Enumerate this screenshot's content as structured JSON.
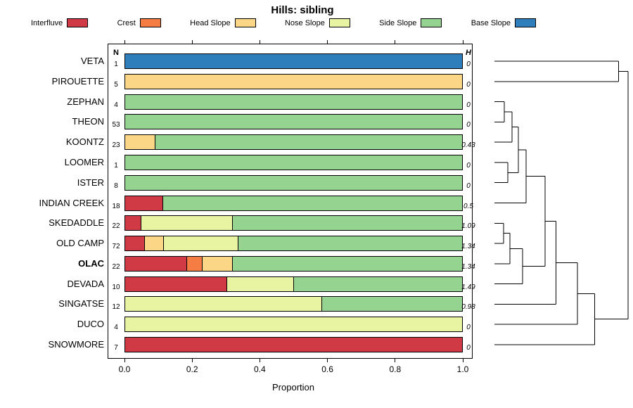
{
  "title": "Hills: sibling",
  "axis": {
    "xlabel": "Proportion",
    "ticks": [
      "0.0",
      "0.2",
      "0.4",
      "0.6",
      "0.8",
      "1.0"
    ],
    "tick_values": [
      0,
      0.2,
      0.4,
      0.6,
      0.8,
      1.0
    ],
    "xlim": [
      0,
      1
    ]
  },
  "columns": {
    "n_header": "N",
    "h_header": "H"
  },
  "chart_data": {
    "type": "bar",
    "stacked": true,
    "orientation": "horizontal",
    "title": "Hills: sibling",
    "xlabel": "Proportion",
    "xlim": [
      0,
      1
    ],
    "legend_position": "top",
    "grid": false,
    "classes": [
      {
        "label": "Interfluve",
        "color": "#D03A44"
      },
      {
        "label": "Crest",
        "color": "#F57C42"
      },
      {
        "label": "Head Slope",
        "color": "#FBD687"
      },
      {
        "label": "Nose Slope",
        "color": "#E9F4A3"
      },
      {
        "label": "Side Slope",
        "color": "#94D390"
      },
      {
        "label": "Base Slope",
        "color": "#2E7EBC"
      }
    ],
    "rows": [
      {
        "label": "VETA",
        "n": 1,
        "h": "0",
        "emphasis": false,
        "segments": [
          {
            "class": "Base Slope",
            "value": 1.0
          }
        ]
      },
      {
        "label": "PIROUETTE",
        "n": 5,
        "h": "0",
        "emphasis": false,
        "segments": [
          {
            "class": "Head Slope",
            "value": 1.0
          }
        ]
      },
      {
        "label": "ZEPHAN",
        "n": 4,
        "h": "0",
        "emphasis": false,
        "segments": [
          {
            "class": "Side Slope",
            "value": 1.0
          }
        ]
      },
      {
        "label": "THEON",
        "n": 53,
        "h": "0",
        "emphasis": false,
        "segments": [
          {
            "class": "Side Slope",
            "value": 1.0
          }
        ]
      },
      {
        "label": "KOONTZ",
        "n": 23,
        "h": "0.43",
        "emphasis": false,
        "segments": [
          {
            "class": "Head Slope",
            "value": 0.087
          },
          {
            "class": "Side Slope",
            "value": 0.913
          }
        ]
      },
      {
        "label": "LOOMER",
        "n": 1,
        "h": "0",
        "emphasis": false,
        "segments": [
          {
            "class": "Side Slope",
            "value": 1.0
          }
        ]
      },
      {
        "label": "ISTER",
        "n": 8,
        "h": "0",
        "emphasis": false,
        "segments": [
          {
            "class": "Side Slope",
            "value": 1.0
          }
        ]
      },
      {
        "label": "INDIAN CREEK",
        "n": 18,
        "h": "0.5",
        "emphasis": false,
        "segments": [
          {
            "class": "Interfluve",
            "value": 0.111
          },
          {
            "class": "Side Slope",
            "value": 0.889
          }
        ]
      },
      {
        "label": "SKEDADDLE",
        "n": 22,
        "h": "1.09",
        "emphasis": false,
        "segments": [
          {
            "class": "Interfluve",
            "value": 0.045
          },
          {
            "class": "Nose Slope",
            "value": 0.273
          },
          {
            "class": "Side Slope",
            "value": 0.682
          }
        ]
      },
      {
        "label": "OLD CAMP",
        "n": 72,
        "h": "1.34",
        "emphasis": false,
        "segments": [
          {
            "class": "Interfluve",
            "value": 0.056
          },
          {
            "class": "Head Slope",
            "value": 0.056
          },
          {
            "class": "Nose Slope",
            "value": 0.222
          },
          {
            "class": "Side Slope",
            "value": 0.666
          }
        ]
      },
      {
        "label": "OLAC",
        "n": 22,
        "h": "1.34",
        "emphasis": true,
        "segments": [
          {
            "class": "Interfluve",
            "value": 0.182
          },
          {
            "class": "Crest",
            "value": 0.045
          },
          {
            "class": "Head Slope",
            "value": 0.091
          },
          {
            "class": "Side Slope",
            "value": 0.682
          }
        ]
      },
      {
        "label": "DEVADA",
        "n": 10,
        "h": "1.49",
        "emphasis": false,
        "segments": [
          {
            "class": "Interfluve",
            "value": 0.3
          },
          {
            "class": "Nose Slope",
            "value": 0.2
          },
          {
            "class": "Side Slope",
            "value": 0.5
          }
        ]
      },
      {
        "label": "SINGATSE",
        "n": 12,
        "h": "0.98",
        "emphasis": false,
        "segments": [
          {
            "class": "Nose Slope",
            "value": 0.583
          },
          {
            "class": "Side Slope",
            "value": 0.417
          }
        ]
      },
      {
        "label": "DUCO",
        "n": 4,
        "h": "0",
        "emphasis": false,
        "segments": [
          {
            "class": "Nose Slope",
            "value": 1.0
          }
        ]
      },
      {
        "label": "SNOWMORE",
        "n": 7,
        "h": "0",
        "emphasis": false,
        "segments": [
          {
            "class": "Interfluve",
            "value": 1.0
          }
        ]
      }
    ]
  },
  "dendrogram": {
    "orientation": "right-of-bars",
    "tree": {
      "h": 1.0,
      "children": [
        {
          "h": 0.93,
          "children": [
            {
              "leaf": 0
            },
            {
              "leaf": 1
            }
          ]
        },
        {
          "h": 0.75,
          "children": [
            {
              "h": 0.62,
              "children": [
                {
                  "h": 0.46,
                  "children": [
                    {
                      "h": 0.38,
                      "children": [
                        {
                          "h": 0.237,
                          "children": [
                            {
                              "h": 0.179,
                              "children": [
                                {
                                  "h": 0.132,
                                  "children": [
                                    {
                                      "h": 0.074,
                                      "children": [
                                        {
                                          "leaf": 2
                                        },
                                        {
                                          "leaf": 3
                                        }
                                      ]
                                    },
                                    {
                                      "leaf": 4
                                    }
                                  ]
                                },
                                {
                                  "h": 0.1,
                                  "children": [
                                    {
                                      "leaf": 5
                                    },
                                    {
                                      "leaf": 6
                                    }
                                  ]
                                }
                              ]
                            },
                            {
                              "leaf": 7
                            }
                          ]
                        },
                        {
                          "h": 0.21,
                          "children": [
                            {
                              "h": 0.116,
                              "children": [
                                {
                                  "h": 0.068,
                                  "children": [
                                    {
                                      "leaf": 8
                                    },
                                    {
                                      "leaf": 9
                                    }
                                  ]
                                },
                                {
                                  "leaf": 10
                                }
                              ]
                            },
                            {
                              "leaf": 11
                            }
                          ]
                        }
                      ]
                    },
                    {
                      "leaf": 12
                    }
                  ]
                },
                {
                  "leaf": 13
                }
              ]
            },
            {
              "leaf": 14
            }
          ]
        }
      ]
    }
  }
}
